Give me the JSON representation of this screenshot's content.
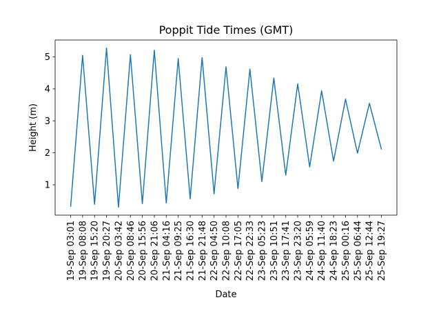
{
  "chart_data": {
    "type": "line",
    "title": "Poppit Tide Times (GMT)",
    "xlabel": "Date",
    "ylabel": "Height (m)",
    "categories": [
      "19-Sep 03:01",
      "19-Sep 08:08",
      "19-Sep 15:20",
      "19-Sep 20:27",
      "20-Sep 03:42",
      "20-Sep 08:46",
      "20-Sep 15:56",
      "20-Sep 21:06",
      "21-Sep 04:16",
      "21-Sep 09:25",
      "21-Sep 16:30",
      "21-Sep 21:48",
      "22-Sep 04:50",
      "22-Sep 10:08",
      "22-Sep 17:05",
      "22-Sep 22:33",
      "23-Sep 05:23",
      "23-Sep 10:51",
      "23-Sep 17:41",
      "23-Sep 23:20",
      "24-Sep 05:59",
      "24-Sep 11:40",
      "24-Sep 18:23",
      "25-Sep 00:16",
      "25-Sep 06:44",
      "25-Sep 12:44",
      "25-Sep 19:27"
    ],
    "series": [
      {
        "values": [
          0.33,
          5.05,
          0.39,
          5.28,
          0.3,
          5.07,
          0.41,
          5.21,
          0.43,
          4.95,
          0.56,
          4.98,
          0.72,
          4.69,
          0.88,
          4.62,
          1.1,
          4.34,
          1.3,
          4.16,
          1.56,
          3.94,
          1.74,
          3.68,
          1.99,
          3.55,
          2.12
        ]
      }
    ],
    "yticks": [
      1,
      2,
      3,
      4,
      5
    ],
    "ylim": [
      0.05,
      5.53
    ],
    "grid": false,
    "colors": {
      "line": "#1f77b4",
      "axes": "#000000"
    }
  }
}
